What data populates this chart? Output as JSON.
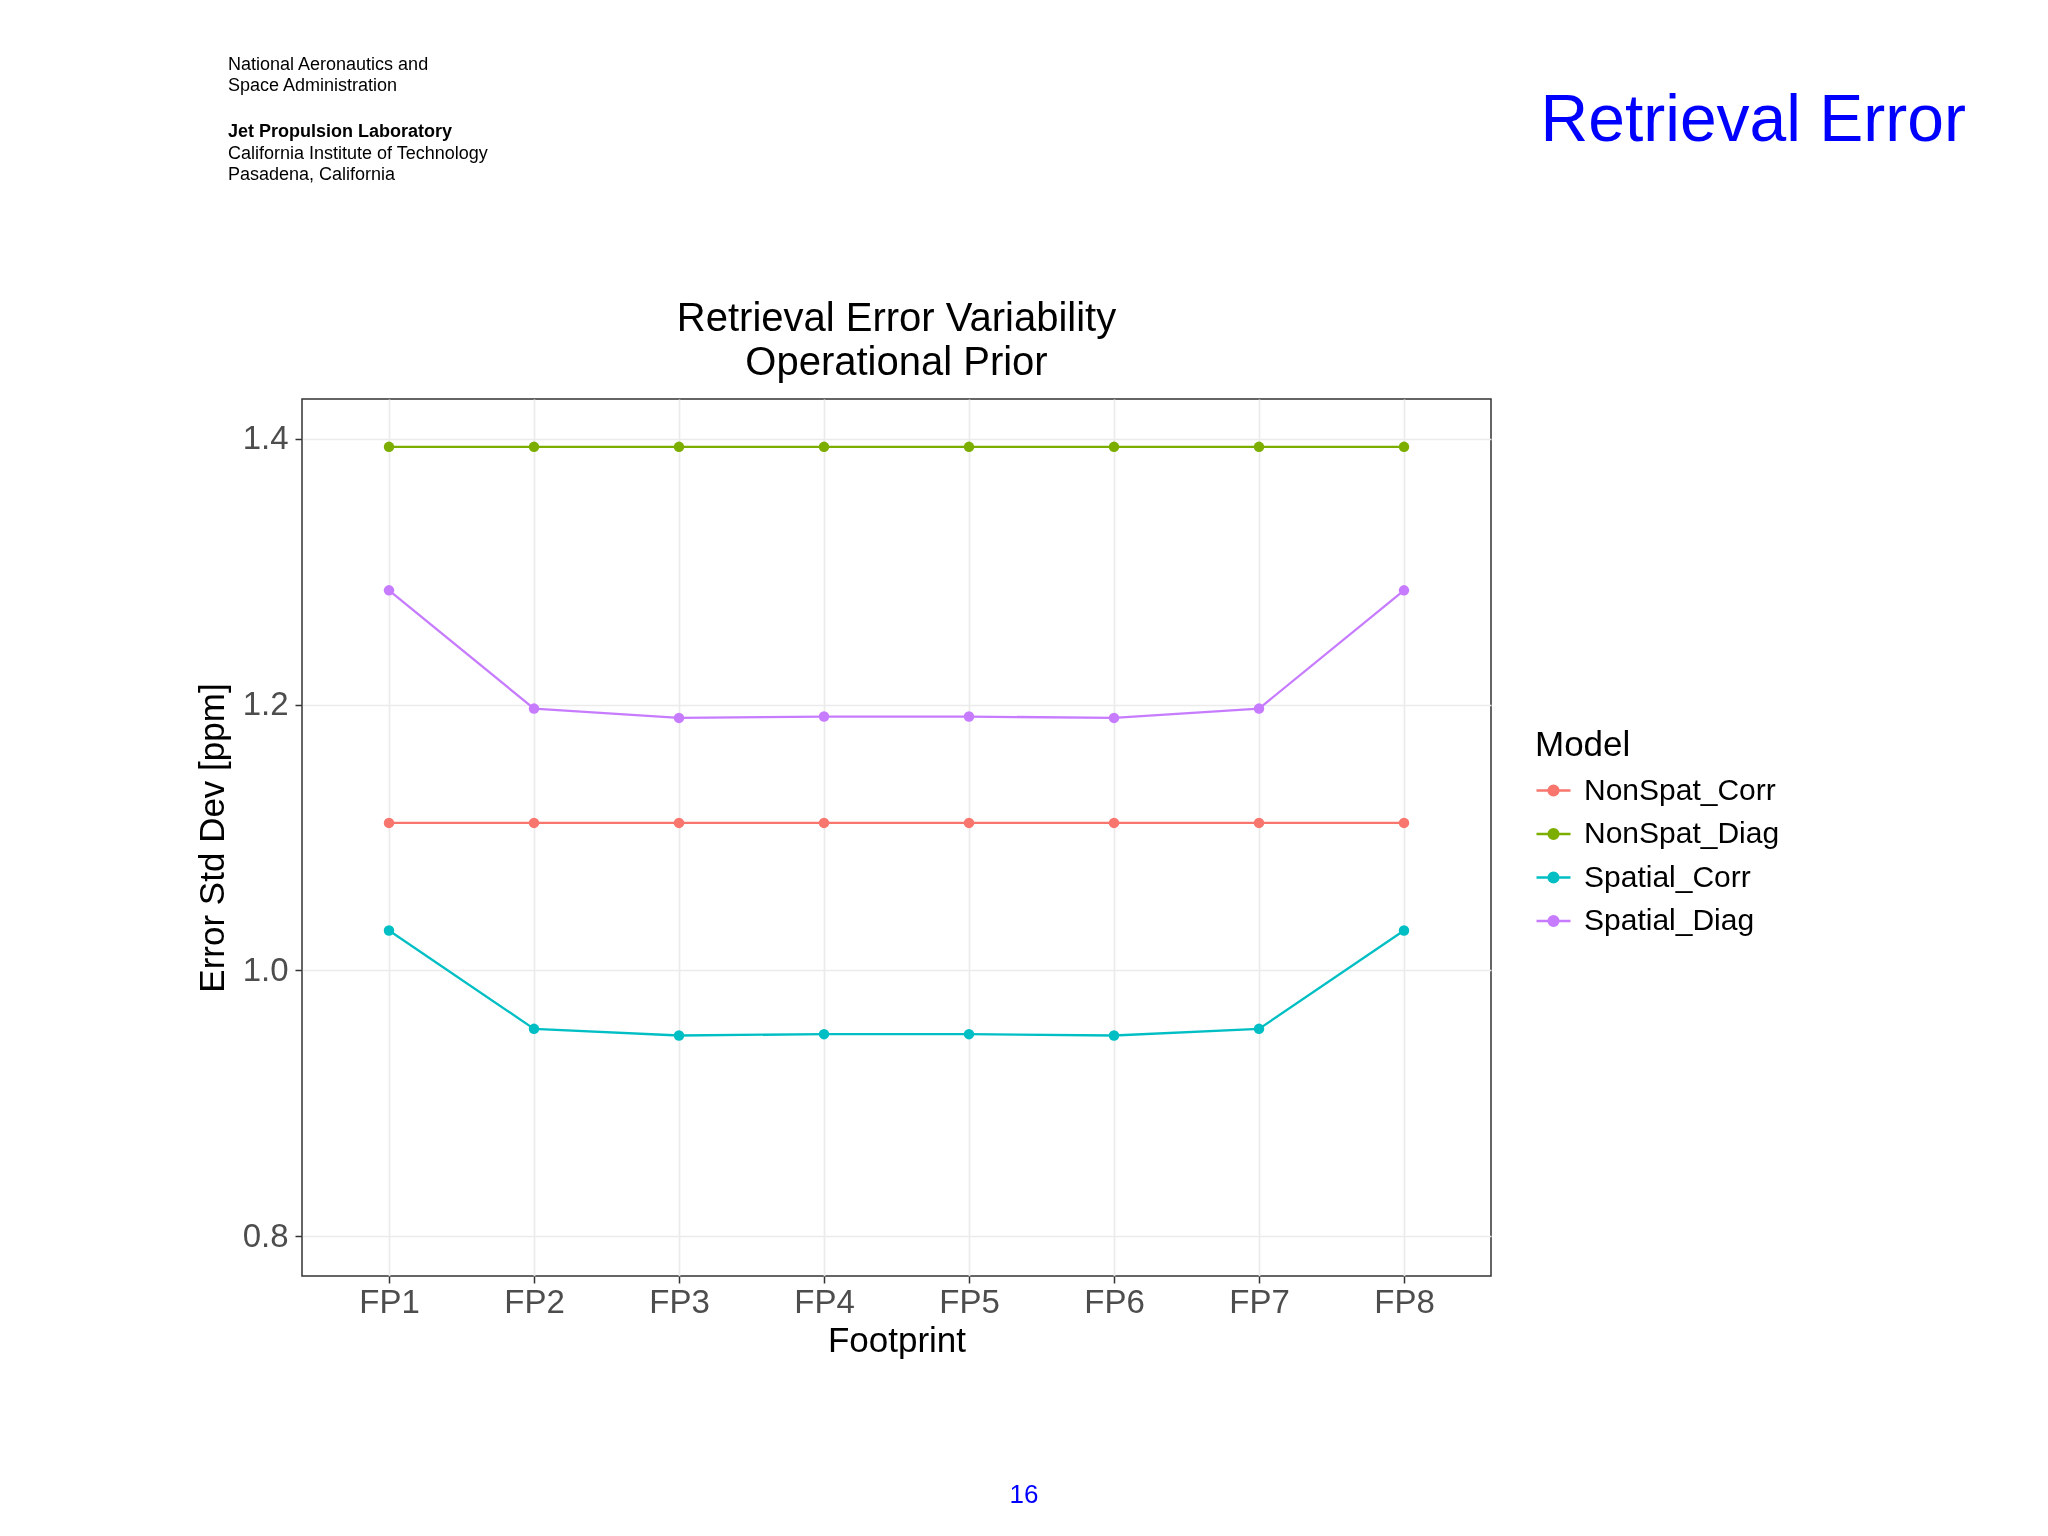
{
  "chart_data": {
    "type": "line",
    "title": "Retrieval Error Variability",
    "subtitle": "Operational Prior",
    "xlabel": "Footprint",
    "ylabel": "Error Std Dev [ppm]",
    "legend_title": "Model",
    "categories": [
      "FP1",
      "FP2",
      "FP3",
      "FP4",
      "FP5",
      "FP6",
      "FP7",
      "FP8"
    ],
    "series": [
      {
        "name": "NonSpat_Corr",
        "color": "#f8766d",
        "values": [
          1.111,
          1.111,
          1.111,
          1.111,
          1.111,
          1.111,
          1.111,
          1.111
        ]
      },
      {
        "name": "NonSpat_Diag",
        "color": "#7cae00",
        "values": [
          1.394,
          1.394,
          1.394,
          1.394,
          1.394,
          1.394,
          1.394,
          1.394
        ]
      },
      {
        "name": "Spatial_Corr",
        "color": "#00bfc4",
        "values": [
          1.03,
          0.956,
          0.951,
          0.952,
          0.952,
          0.951,
          0.956,
          1.03
        ]
      },
      {
        "name": "Spatial_Diag",
        "color": "#c77cff",
        "values": [
          1.286,
          1.197,
          1.19,
          1.191,
          1.191,
          1.19,
          1.197,
          1.286
        ]
      }
    ],
    "ylim": [
      0.77,
      1.43
    ],
    "yticks": [
      0.8,
      {
        "value": 1.0,
        "label": "1.0"
      },
      1.2,
      1.4
    ],
    "grid": true,
    "legend": "right",
    "marker": "circle",
    "line_style": "solid",
    "annotations": [
      "Retrieval Error",
      "National Aeronautics and",
      "Space Administration",
      "Jet Propulsion Laboratory",
      "California Institute of Technology",
      "Pasadena, California",
      "16"
    ]
  }
}
